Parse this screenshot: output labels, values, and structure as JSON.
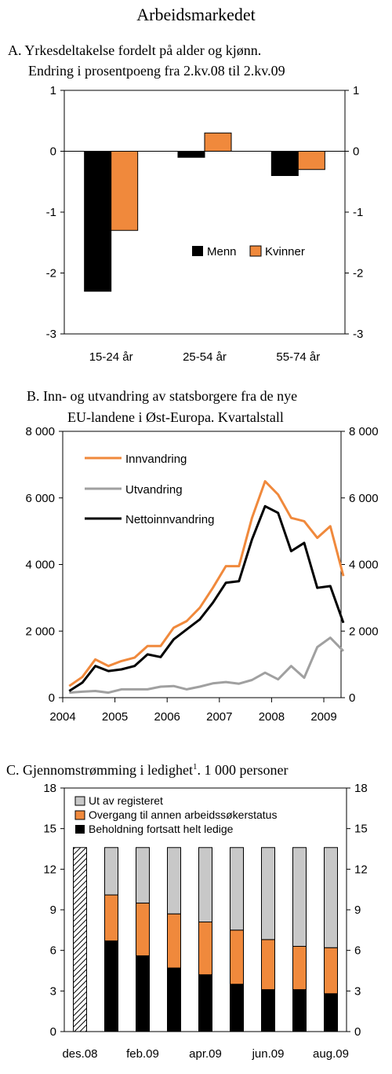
{
  "page_title": "Arbeidsmarkedet",
  "chart_data": [
    {
      "type": "bar",
      "title_line1": "A.  Yrkesdeltakelse fordelt på alder og kjønn.",
      "title_line2": "Endring i prosentpoeng fra 2.kv.08 til 2.kv.09",
      "categories": [
        "15-24 år",
        "25-54 år",
        "55-74 år"
      ],
      "series": [
        {
          "name": "Menn",
          "color": "#000000",
          "values": [
            -2.3,
            -0.1,
            -0.4
          ]
        },
        {
          "name": "Kvinner",
          "color": "#f0893c",
          "values": [
            -1.3,
            0.3,
            -0.3
          ]
        }
      ],
      "ylim": [
        -3,
        1
      ],
      "yticks": [
        1,
        0,
        -1,
        -2,
        -3
      ],
      "ytick_labels": [
        "1",
        "0",
        "-1",
        "-2",
        "-3"
      ],
      "legend_position": "lower-right",
      "grid": false
    },
    {
      "type": "line",
      "title_line1": "B.  Inn- og utvandring av statsborgere fra de nye",
      "title_line2": "EU-landene i Øst-Europa. Kvartalstall",
      "x": [
        "2004Q1",
        "2004Q2",
        "2004Q3",
        "2004Q4",
        "2005Q1",
        "2005Q2",
        "2005Q3",
        "2005Q4",
        "2006Q1",
        "2006Q2",
        "2006Q3",
        "2006Q4",
        "2007Q1",
        "2007Q2",
        "2007Q3",
        "2007Q4",
        "2008Q1",
        "2008Q2",
        "2008Q3",
        "2008Q4",
        "2009Q1",
        "2009Q2"
      ],
      "series": [
        {
          "name": "Innvandring",
          "color": "#f0893c",
          "values": [
            350,
            620,
            1150,
            950,
            1100,
            1200,
            1550,
            1550,
            2100,
            2300,
            2700,
            3300,
            3950,
            3950,
            5400,
            6500,
            6100,
            5400,
            5300,
            4800,
            5150,
            3650
          ]
        },
        {
          "name": "Utvandring",
          "color": "#a0a0a0",
          "values": [
            150,
            180,
            200,
            150,
            250,
            250,
            250,
            330,
            350,
            250,
            330,
            430,
            470,
            420,
            530,
            750,
            550,
            950,
            600,
            1520,
            1800,
            1400
          ]
        },
        {
          "name": "Nettoinnvandring",
          "color": "#000000",
          "values": [
            200,
            450,
            950,
            800,
            850,
            950,
            1300,
            1220,
            1750,
            2050,
            2350,
            2850,
            3450,
            3500,
            4750,
            5750,
            5550,
            4400,
            4650,
            3300,
            3350,
            2250
          ]
        }
      ],
      "xtick_labels": [
        "2004",
        "2005",
        "2006",
        "2007",
        "2008",
        "2009"
      ],
      "ylim": [
        0,
        8000
      ],
      "yticks": [
        8000,
        6000,
        4000,
        2000,
        0
      ],
      "ytick_labels": [
        "8 000",
        "6 000",
        "4 000",
        "2 000",
        "0"
      ],
      "legend_position": "top-left",
      "grid": false
    },
    {
      "type": "bar",
      "stacked": true,
      "title_main": "C.  Gjennomstrømming i ledighet",
      "title_sup": "1",
      "title_tail": ". 1 000 personer",
      "categories": [
        "des.08",
        "jan.09",
        "feb.09",
        "mar.09",
        "apr.09",
        "mai.09",
        "jun.09",
        "jul.09",
        "aug.09"
      ],
      "xtick_labels": [
        "des.08",
        "feb.09",
        "apr.09",
        "jun.09",
        "aug.09"
      ],
      "initial_bar_value": 13.6,
      "series": [
        {
          "name": "Beholdning fortsatt helt ledige",
          "color": "#000000",
          "values": [
            0,
            6.7,
            5.6,
            4.7,
            4.2,
            3.5,
            3.1,
            3.1,
            2.8
          ]
        },
        {
          "name": "Overgang til annen arbeidssøkerstatus",
          "color": "#f0893c",
          "values": [
            0,
            3.4,
            3.9,
            4.0,
            3.9,
            4.0,
            3.7,
            3.2,
            3.4
          ]
        },
        {
          "name": "Ut av registeret",
          "color": "#c8c8c8",
          "values": [
            0,
            3.5,
            4.1,
            4.9,
            5.5,
            6.1,
            6.8,
            7.3,
            7.4
          ]
        }
      ],
      "ylim": [
        0,
        18
      ],
      "yticks": [
        18,
        15,
        12,
        9,
        6,
        3,
        0
      ],
      "ytick_labels": [
        "18",
        "15",
        "12",
        "9",
        "6",
        "3",
        "0"
      ],
      "legend_position": "top-left",
      "grid": false
    }
  ]
}
